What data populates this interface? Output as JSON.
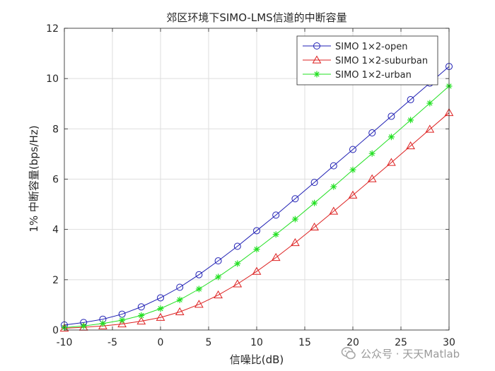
{
  "chart_data": {
    "type": "line",
    "title": "郊区环境下SIMO-LMS信道的中断容量",
    "xlabel": "信噪比(dB)",
    "ylabel": "1% 中断容量(bps/Hz)",
    "xlim": [
      -10,
      30
    ],
    "ylim": [
      0,
      12
    ],
    "xticks": [
      -10,
      -5,
      0,
      5,
      10,
      15,
      20,
      25,
      30
    ],
    "yticks": [
      0,
      2,
      4,
      6,
      8,
      10,
      12
    ],
    "xtick_labels": [
      "-10",
      "-5",
      "0",
      "5",
      "10",
      "15",
      "20",
      "25",
      "30"
    ],
    "ytick_labels": [
      "0",
      "2",
      "4",
      "6",
      "8",
      "10",
      "12"
    ],
    "grid": true,
    "legend_position": "top-right",
    "x": [
      -10,
      -8,
      -6,
      -4,
      -2,
      0,
      2,
      4,
      6,
      8,
      10,
      12,
      14,
      16,
      18,
      20,
      22,
      24,
      26,
      28,
      30
    ],
    "series": [
      {
        "name": "SIMO 1×2-open",
        "color": "#1f1fb4",
        "marker": "circle",
        "values": [
          0.2,
          0.3,
          0.43,
          0.63,
          0.92,
          1.28,
          1.7,
          2.2,
          2.75,
          3.33,
          3.95,
          4.57,
          5.22,
          5.87,
          6.53,
          7.18,
          7.84,
          8.5,
          9.16,
          9.82,
          10.48
        ]
      },
      {
        "name": "SIMO 1×2-suburban",
        "color": "#dd2020",
        "marker": "triangle",
        "values": [
          0.07,
          0.11,
          0.16,
          0.24,
          0.35,
          0.5,
          0.72,
          1.02,
          1.39,
          1.83,
          2.33,
          2.88,
          3.47,
          4.09,
          4.72,
          5.36,
          6.01,
          6.66,
          7.32,
          7.98,
          8.64
        ]
      },
      {
        "name": "SIMO 1×2-urban",
        "color": "#22e022",
        "marker": "asterisk",
        "values": [
          0.1,
          0.16,
          0.26,
          0.39,
          0.58,
          0.85,
          1.2,
          1.63,
          2.11,
          2.64,
          3.21,
          3.8,
          4.41,
          5.05,
          5.7,
          6.37,
          7.02,
          7.68,
          8.35,
          9.02,
          9.7
        ]
      }
    ]
  },
  "watermark": {
    "text": "公众号 · 天天Matlab",
    "icon": "wechat-logo-icon"
  }
}
